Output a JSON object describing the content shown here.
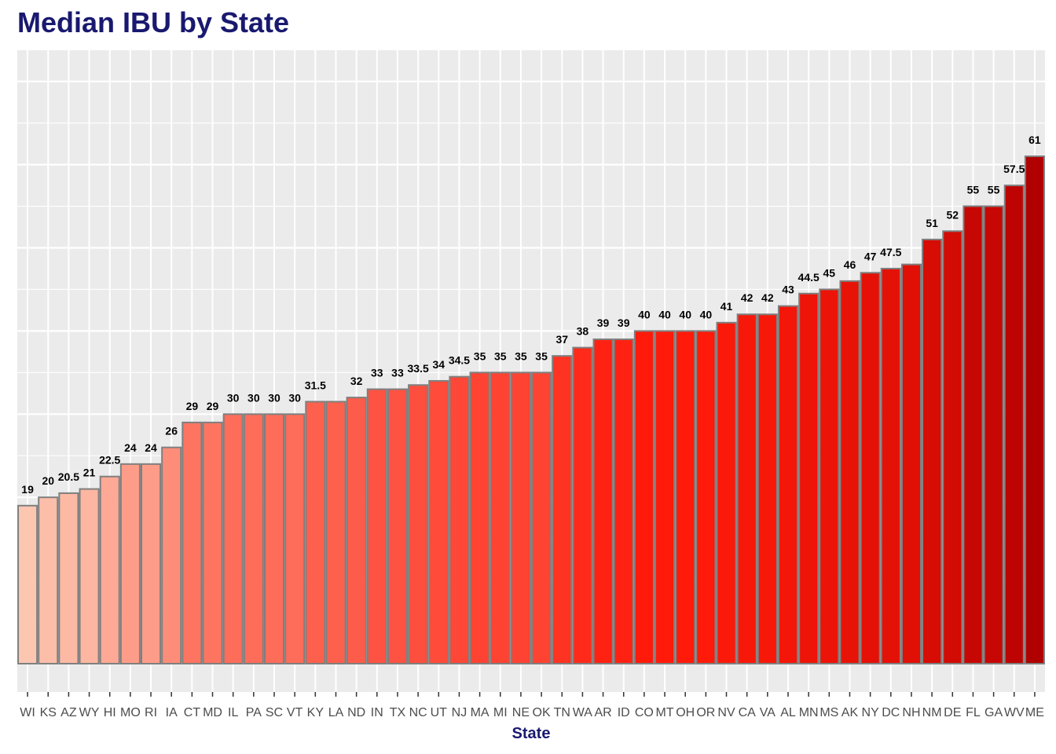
{
  "chart_data": {
    "type": "bar",
    "title": "Median IBU by State",
    "xlabel": "State",
    "ylabel": "",
    "ylim": [
      0,
      62
    ],
    "grid": true,
    "categories": [
      "WI",
      "KS",
      "AZ",
      "WY",
      "HI",
      "MO",
      "RI",
      "IA",
      "CT",
      "MD",
      "IL",
      "PA",
      "SC",
      "VT",
      "KY",
      "LA",
      "ND",
      "IN",
      "TX",
      "NC",
      "UT",
      "NJ",
      "MA",
      "MI",
      "NE",
      "OK",
      "TN",
      "WA",
      "AR",
      "ID",
      "CO",
      "MT",
      "OH",
      "OR",
      "NV",
      "CA",
      "VA",
      "AL",
      "MN",
      "MS",
      "AK",
      "NY",
      "DC",
      "NH",
      "NM",
      "DE",
      "FL",
      "GA",
      "WV",
      "ME"
    ],
    "values": [
      19,
      20,
      20.5,
      21,
      22.5,
      24,
      24,
      26,
      29,
      29,
      30,
      30,
      30,
      30,
      31.5,
      31.5,
      32,
      33,
      33,
      33.5,
      34,
      34.5,
      35,
      35,
      35,
      35,
      37,
      38,
      39,
      39,
      40,
      40,
      40,
      40,
      41,
      42,
      42,
      43,
      44.5,
      45,
      46,
      47,
      47.5,
      48,
      51,
      52,
      55,
      55,
      57.5,
      61
    ],
    "data_labels": [
      "19",
      "20",
      "20.5",
      "21",
      "22.5",
      "24",
      "24",
      "26",
      "29",
      "29",
      "30",
      "30",
      "30",
      "30",
      "31.5",
      "",
      "32",
      "33",
      "33",
      "33.5",
      "34",
      "34.5",
      "35",
      "35",
      "35",
      "35",
      "37",
      "38",
      "39",
      "39",
      "40",
      "40",
      "40",
      "40",
      "41",
      "42",
      "42",
      "43",
      "44.5",
      "45",
      "46",
      "47",
      "47.5",
      "",
      "51",
      "52",
      "55",
      "55",
      "57.5",
      "61"
    ],
    "colors": {
      "low": "#FCC6B1",
      "mid": "#FF1A0A",
      "high": "#B00000",
      "bar_outline": "#7f7f7f",
      "panel": "#EBEBEB",
      "grid": "#FFFFFF",
      "title": "#191970"
    }
  }
}
